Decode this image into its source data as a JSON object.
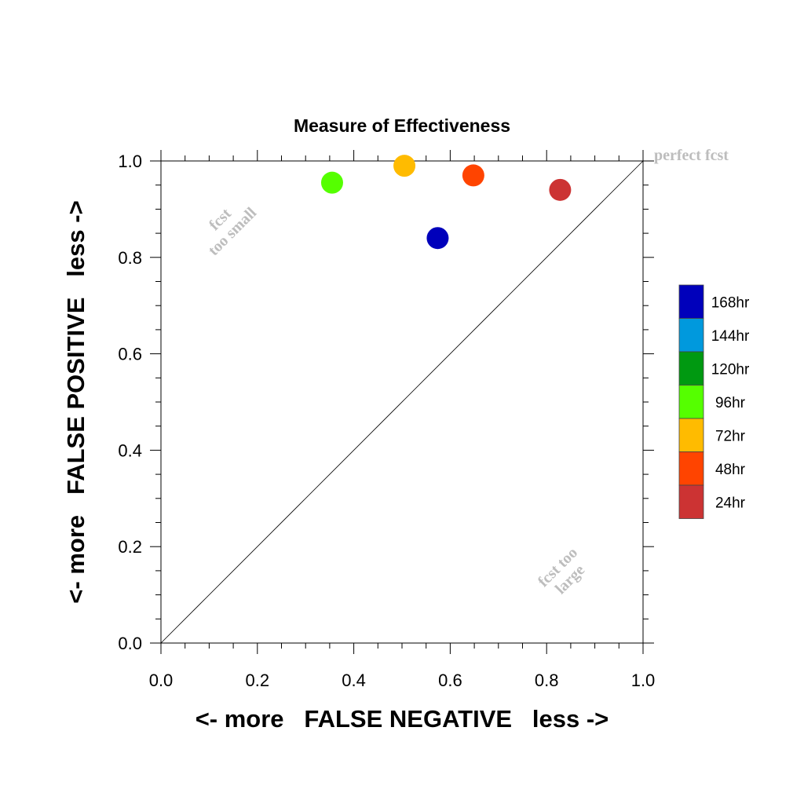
{
  "chart_data": {
    "type": "scatter",
    "title": "Measure of Effectiveness",
    "xlabel": "<- more   FALSE NEGATIVE   less ->",
    "ylabel": "<- more   FALSE POSITIVE   less ->",
    "xlim": [
      0.0,
      1.0
    ],
    "ylim": [
      0.0,
      1.0
    ],
    "xticks": [
      "0.0",
      "0.2",
      "0.4",
      "0.6",
      "0.8",
      "1.0"
    ],
    "yticks": [
      "0.0",
      "0.2",
      "0.4",
      "0.6",
      "0.8",
      "1.0"
    ],
    "grid": false,
    "diagonal_line": true,
    "annotations": {
      "perfect": "perfect fcst",
      "small_line1": "fcst",
      "small_line2": "too small",
      "large_line1": "fcst too",
      "large_line2": "large"
    },
    "legend_position": "right",
    "series": [
      {
        "name": "168hr",
        "color": "#0000bb",
        "x": 0.574,
        "y": 0.84
      },
      {
        "name": "144hr",
        "color": "#0099dd",
        "x": null,
        "y": null
      },
      {
        "name": "120hr",
        "color": "#009911",
        "x": null,
        "y": null
      },
      {
        "name": "96hr",
        "color": "#55ff00",
        "x": 0.355,
        "y": 0.955
      },
      {
        "name": "72hr",
        "color": "#ffbb00",
        "x": 0.505,
        "y": 0.99
      },
      {
        "name": "48hr",
        "color": "#ff4400",
        "x": 0.648,
        "y": 0.97
      },
      {
        "name": "24hr",
        "color": "#cc3333",
        "x": 0.828,
        "y": 0.94
      }
    ]
  }
}
